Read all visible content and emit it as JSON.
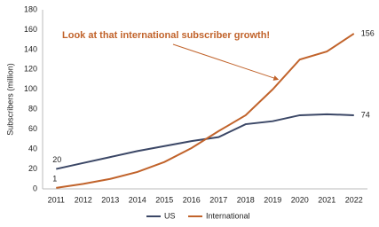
{
  "chart_data": {
    "type": "line",
    "annotation": "Look at that international subscriber growth!",
    "y_label": "Subscribers (million)",
    "categories": [
      "2011",
      "2012",
      "2013",
      "2014",
      "2015",
      "2016",
      "2017",
      "2018",
      "2019",
      "2020",
      "2021",
      "2022"
    ],
    "series": [
      {
        "name": "US",
        "color": "#3b4766",
        "values": [
          20,
          26,
          32,
          38,
          43,
          48,
          52,
          65,
          68,
          74,
          75,
          74
        ]
      },
      {
        "name": "International",
        "color": "#c1632b",
        "values": [
          1,
          5,
          10,
          17,
          27,
          41,
          58,
          74,
          100,
          130,
          138,
          156
        ]
      }
    ],
    "ylim": [
      0,
      180
    ],
    "yticks": [
      0,
      20,
      40,
      60,
      80,
      100,
      120,
      140,
      160,
      180
    ],
    "grid": false
  }
}
